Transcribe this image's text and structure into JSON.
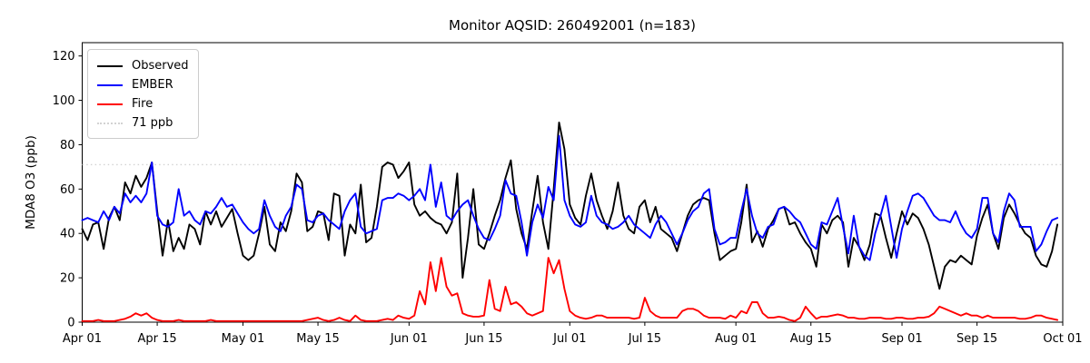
{
  "chart_data": {
    "type": "line",
    "title": "Monitor AQSID: 260492001 (n=183)",
    "xlabel": "",
    "ylabel": "MDA8 O3 (ppb)",
    "x_range": [
      "Apr 01",
      "Sep 30"
    ],
    "x_unit": "day",
    "n_points": 183,
    "ylim": [
      0,
      126
    ],
    "yticks": [
      0,
      20,
      40,
      60,
      80,
      100,
      120
    ],
    "x_axis": {
      "total_days": 183,
      "tick_days": [
        0,
        14,
        30,
        44,
        61,
        75,
        91,
        105,
        122,
        136,
        153,
        167,
        183
      ],
      "tick_labels": [
        "Apr 01",
        "Apr 15",
        "May 01",
        "May 15",
        "Jun 01",
        "Jun 15",
        "Jul 01",
        "Jul 15",
        "Aug 01",
        "Aug 15",
        "Sep 01",
        "Sep 15",
        "Oct 01"
      ]
    },
    "grid": false,
    "legend_position": "upper-left",
    "threshold": {
      "value": 71,
      "label": "71 ppb",
      "color": "#d3d3d3",
      "style": "dotted"
    },
    "legend": [
      {
        "label": "Observed"
      },
      {
        "label": "EMBER"
      },
      {
        "label": "Fire"
      },
      {
        "label": "71 ppb"
      }
    ],
    "series": [
      {
        "name": "Observed",
        "color": "#000000",
        "values": [
          42,
          37,
          44,
          45,
          33,
          47,
          52,
          46,
          63,
          58,
          66,
          61,
          65,
          72,
          50,
          30,
          46,
          32,
          38,
          33,
          44,
          42,
          35,
          50,
          44,
          50,
          43,
          47,
          51,
          40,
          30,
          28,
          30,
          40,
          52,
          35,
          32,
          45,
          41,
          50,
          67,
          63,
          41,
          43,
          50,
          49,
          37,
          58,
          57,
          30,
          44,
          40,
          62,
          36,
          38,
          52,
          70,
          72,
          71,
          65,
          68,
          72,
          53,
          48,
          50,
          47,
          45,
          44,
          40,
          45,
          67,
          20,
          38,
          60,
          35,
          33,
          40,
          48,
          55,
          65,
          73,
          51,
          40,
          33,
          50,
          66,
          45,
          33,
          60,
          90,
          78,
          53,
          47,
          44,
          57,
          67,
          55,
          48,
          42,
          50,
          63,
          48,
          42,
          40,
          52,
          55,
          45,
          52,
          42,
          40,
          38,
          32,
          40,
          48,
          53,
          55,
          56,
          55,
          40,
          28,
          30,
          32,
          33,
          45,
          62,
          36,
          41,
          34,
          42,
          46,
          51,
          52,
          44,
          45,
          40,
          36,
          33,
          25,
          44,
          40,
          46,
          48,
          45,
          25,
          38,
          34,
          28,
          35,
          49,
          48,
          38,
          29,
          40,
          50,
          44,
          49,
          47,
          42,
          35,
          25,
          15,
          25,
          28,
          27,
          30,
          28,
          26,
          39,
          47,
          53,
          40,
          33,
          47,
          53,
          49,
          44,
          40,
          38,
          30,
          26,
          25,
          32,
          44
        ]
      },
      {
        "name": "EMBER",
        "color": "#0000ff",
        "values": [
          46,
          47,
          46,
          45,
          50,
          46,
          52,
          49,
          58,
          54,
          57,
          54,
          58,
          72,
          48,
          44,
          43,
          45,
          60,
          48,
          50,
          46,
          44,
          50,
          49,
          52,
          56,
          52,
          53,
          49,
          45,
          42,
          40,
          42,
          55,
          48,
          43,
          41,
          48,
          52,
          62,
          60,
          46,
          45,
          48,
          49,
          46,
          44,
          42,
          50,
          55,
          58,
          43,
          40,
          41,
          42,
          55,
          56,
          56,
          58,
          57,
          55,
          57,
          60,
          55,
          71,
          52,
          63,
          48,
          46,
          50,
          53,
          55,
          48,
          42,
          38,
          37,
          42,
          48,
          64,
          58,
          57,
          45,
          30,
          45,
          53,
          47,
          61,
          55,
          84,
          55,
          48,
          44,
          43,
          45,
          57,
          48,
          45,
          44,
          42,
          43,
          45,
          48,
          44,
          42,
          40,
          38,
          44,
          48,
          45,
          40,
          35,
          40,
          46,
          50,
          52,
          58,
          60,
          42,
          35,
          36,
          38,
          38,
          50,
          60,
          48,
          40,
          38,
          43,
          44,
          51,
          52,
          50,
          47,
          45,
          40,
          35,
          33,
          45,
          44,
          50,
          56,
          43,
          31,
          48,
          34,
          30,
          28,
          40,
          48,
          57,
          43,
          29,
          42,
          50,
          57,
          58,
          56,
          52,
          48,
          46,
          46,
          45,
          50,
          44,
          40,
          38,
          42,
          56,
          56,
          40,
          36,
          50,
          58,
          55,
          43,
          43,
          43,
          32,
          35,
          41,
          46,
          47
        ]
      },
      {
        "name": "Fire",
        "color": "#ff0000",
        "values": [
          0.5,
          0.5,
          0.5,
          1,
          0.5,
          0.5,
          0.5,
          1,
          1.5,
          2.5,
          4,
          3,
          4,
          2,
          1,
          0.5,
          0.5,
          0.5,
          1,
          0.5,
          0.5,
          0.5,
          0.5,
          0.5,
          1,
          0.5,
          0.5,
          0.5,
          0.5,
          0.5,
          0.5,
          0.5,
          0.5,
          0.5,
          0.5,
          0.5,
          0.5,
          0.5,
          0.5,
          0.5,
          0.5,
          0.5,
          1,
          1.5,
          2,
          1,
          0.5,
          1,
          2,
          1,
          0.5,
          3,
          1,
          0.5,
          0.5,
          0.5,
          1,
          1.5,
          1,
          3,
          2,
          1.5,
          3,
          14,
          8,
          27,
          14,
          29,
          16,
          12,
          13,
          4,
          3,
          2.5,
          2.5,
          3,
          19,
          6,
          5,
          16,
          8,
          9,
          7,
          4,
          3,
          4,
          5,
          29,
          22,
          28,
          15,
          5,
          3,
          2,
          1.5,
          2,
          3,
          3,
          2,
          2,
          2,
          2,
          2,
          1.5,
          2,
          11,
          5,
          3,
          2,
          2,
          2,
          2,
          5,
          6,
          6,
          5,
          3,
          2,
          2,
          2,
          1.5,
          3,
          2,
          5,
          4,
          9,
          9,
          4,
          2,
          2,
          2.5,
          2,
          1,
          0.5,
          2,
          7,
          4,
          1.5,
          2.5,
          2.5,
          3,
          3.5,
          3,
          2,
          2,
          1.5,
          1.5,
          2,
          2,
          2,
          1.5,
          1.5,
          2,
          2,
          1.5,
          1.5,
          2,
          2,
          2.5,
          4,
          7,
          6,
          5,
          4,
          3,
          4,
          3,
          3,
          2,
          3,
          2,
          2,
          2,
          2,
          2,
          1.5,
          1.5,
          2,
          3,
          3,
          2,
          1.5,
          1
        ]
      }
    ]
  }
}
